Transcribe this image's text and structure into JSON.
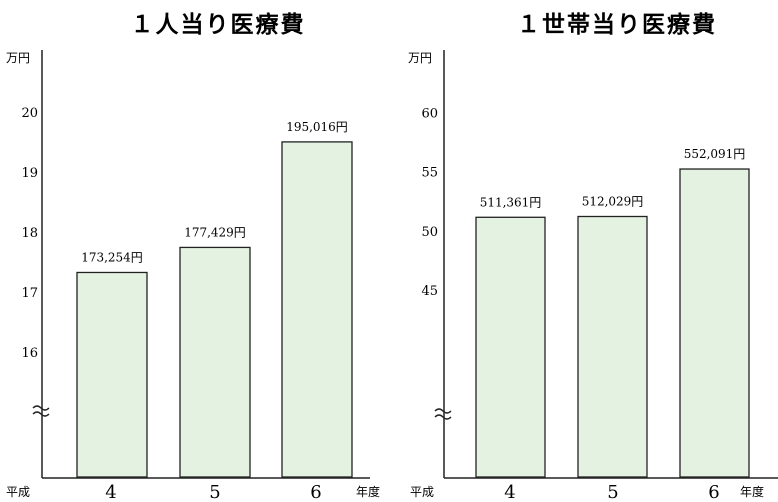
{
  "chart_data": [
    {
      "type": "bar",
      "title": "１人当り医療費",
      "unit_label": "万円",
      "era_label": "平成",
      "fy_label": "年度",
      "categories": [
        "4",
        "5",
        "6"
      ],
      "values": [
        17.3254,
        17.7429,
        19.5016
      ],
      "value_labels": [
        "173,254円",
        "177,429円",
        "195,016円"
      ],
      "y_ticks": [
        "16",
        "17",
        "18",
        "19",
        "20"
      ],
      "axis_break": true,
      "colors": {
        "bar_fill": "#e4f2e2",
        "bar_stroke": "#222222"
      }
    },
    {
      "type": "bar",
      "title": "１世帯当り医療費",
      "unit_label": "万円",
      "era_label": "平成",
      "fy_label": "年度",
      "categories": [
        "4",
        "5",
        "6"
      ],
      "values": [
        51.1361,
        51.2029,
        55.2091
      ],
      "value_labels": [
        "511,361円",
        "512,029円",
        "552,091円"
      ],
      "y_ticks": [
        "45",
        "50",
        "55",
        "60"
      ],
      "axis_break": true,
      "colors": {
        "bar_fill": "#e4f2e2",
        "bar_stroke": "#222222"
      }
    }
  ]
}
